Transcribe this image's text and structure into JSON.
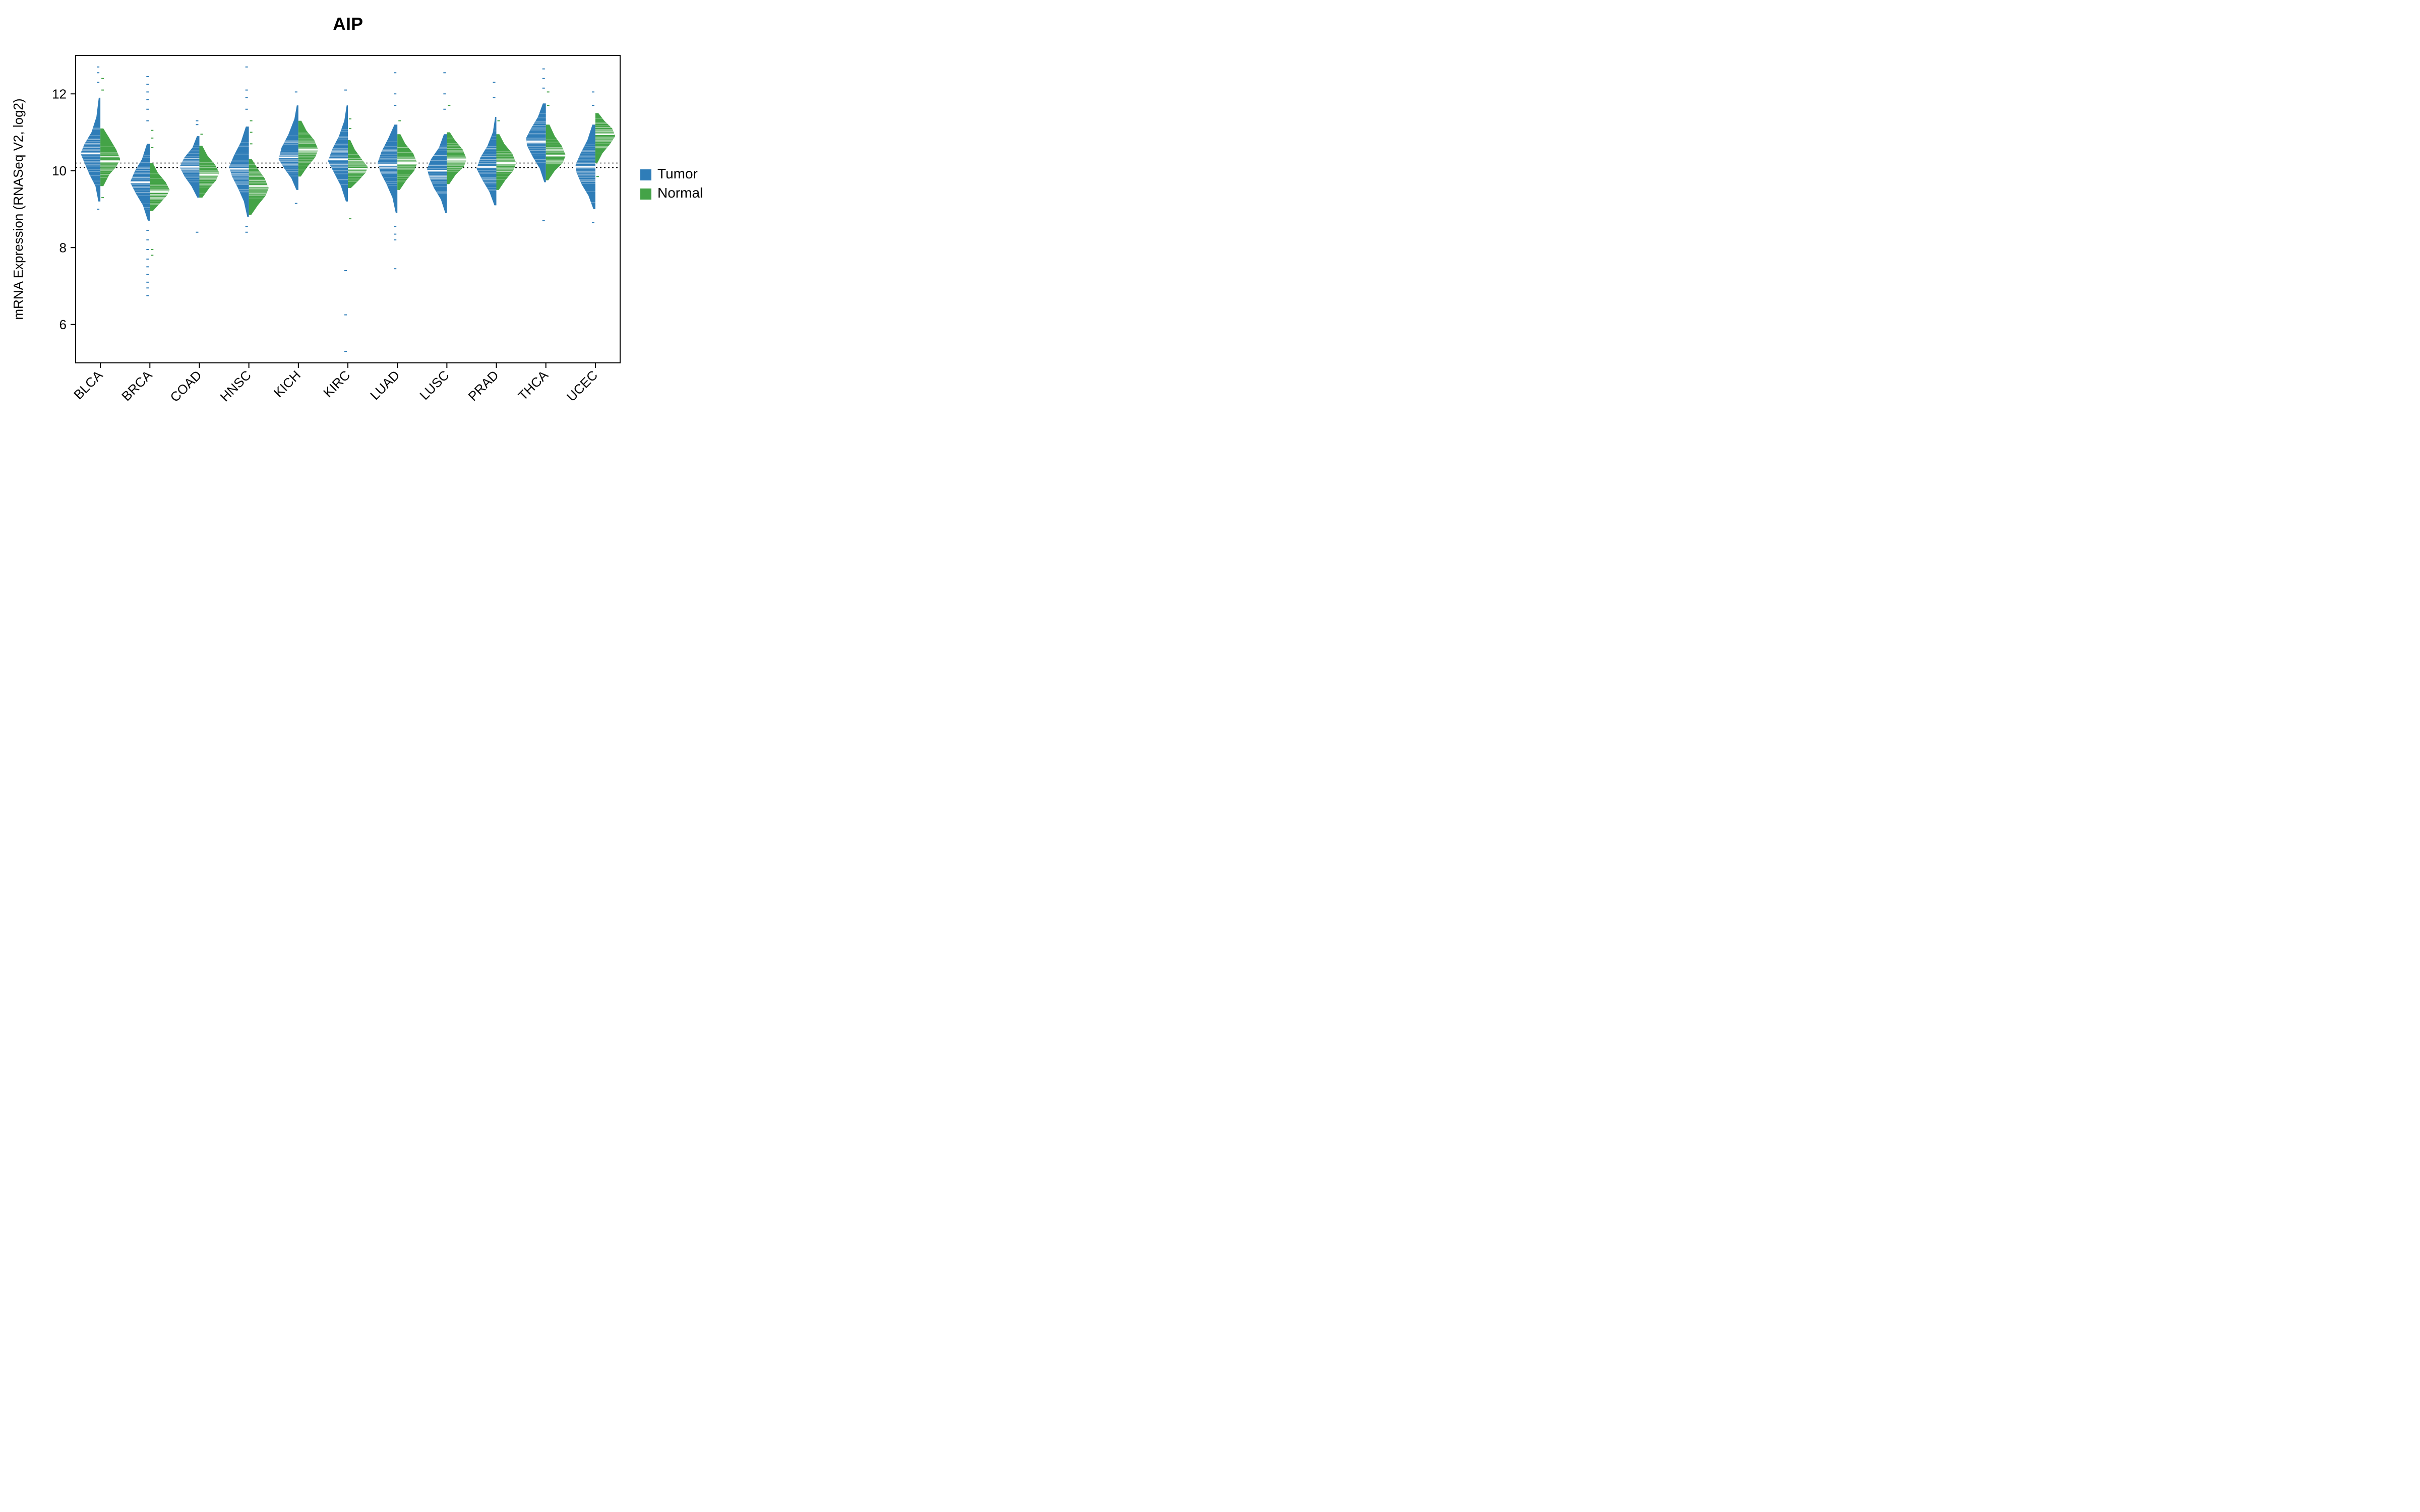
{
  "chart": {
    "type": "beanplot",
    "title": "AIP",
    "title_fontsize": 36,
    "title_fontweight": "bold",
    "ylabel": "mRNA Expression (RNASeq V2, log2)",
    "ylabel_fontsize": 26,
    "xlabel_fontsize": 26,
    "axis_tick_fontsize": 26,
    "background_color": "#ffffff",
    "axis_color": "#000000",
    "axis_linewidth": 2,
    "ylim": [
      5,
      13
    ],
    "yticks": [
      6,
      8,
      10,
      12
    ],
    "reference_lines": {
      "values": [
        10.08,
        10.2
      ],
      "color": "#000000",
      "dash": "3,5",
      "linewidth": 1.5
    },
    "legend": {
      "position": "right",
      "items": [
        {
          "label": "Tumor",
          "color": "#2f7db8"
        },
        {
          "label": "Normal",
          "color": "#44a347"
        }
      ],
      "swatch_size": 22,
      "fontsize": 28
    },
    "series_colors": {
      "tumor": "#2f7db8",
      "normal": "#44a347"
    },
    "median_line_color": "#ffffff",
    "median_line_width": 3,
    "obs_line_color_opacity": 0.85,
    "xlabel_rotation": -45,
    "categories": [
      "BLCA",
      "BRCA",
      "COAD",
      "HNSC",
      "KICH",
      "KIRC",
      "LUAD",
      "LUSC",
      "PRAD",
      "THCA",
      "UCEC"
    ],
    "groups": {
      "BLCA": {
        "tumor": {
          "median": 10.45,
          "dist": [
            [
              9.2,
              0.1
            ],
            [
              9.6,
              0.25
            ],
            [
              9.9,
              0.55
            ],
            [
              10.2,
              0.8
            ],
            [
              10.45,
              1.0
            ],
            [
              10.7,
              0.8
            ],
            [
              11.0,
              0.45
            ],
            [
              11.4,
              0.2
            ],
            [
              11.9,
              0.08
            ]
          ],
          "outliers": [
            12.3,
            12.55,
            12.7,
            9.0
          ]
        },
        "normal": {
          "median": 10.25,
          "dist": [
            [
              9.6,
              0.15
            ],
            [
              9.9,
              0.45
            ],
            [
              10.1,
              0.8
            ],
            [
              10.3,
              1.0
            ],
            [
              10.55,
              0.8
            ],
            [
              10.85,
              0.45
            ],
            [
              11.1,
              0.15
            ]
          ],
          "outliers": [
            12.1,
            12.4,
            9.3
          ]
        }
      },
      "BRCA": {
        "tumor": {
          "median": 9.7,
          "dist": [
            [
              8.7,
              0.1
            ],
            [
              9.1,
              0.35
            ],
            [
              9.4,
              0.7
            ],
            [
              9.7,
              1.0
            ],
            [
              10.0,
              0.75
            ],
            [
              10.3,
              0.4
            ],
            [
              10.7,
              0.15
            ]
          ],
          "outliers": [
            6.75,
            6.95,
            7.1,
            7.3,
            7.5,
            7.7,
            7.95,
            8.2,
            8.45,
            11.3,
            11.6,
            11.85,
            12.05,
            12.25,
            12.45
          ]
        },
        "normal": {
          "median": 9.45,
          "dist": [
            [
              8.95,
              0.15
            ],
            [
              9.15,
              0.5
            ],
            [
              9.35,
              0.85
            ],
            [
              9.5,
              1.0
            ],
            [
              9.7,
              0.8
            ],
            [
              9.95,
              0.4
            ],
            [
              10.2,
              0.15
            ]
          ],
          "outliers": [
            7.8,
            7.95,
            10.6,
            10.85,
            11.05
          ]
        }
      },
      "COAD": {
        "tumor": {
          "median": 10.1,
          "dist": [
            [
              9.3,
              0.1
            ],
            [
              9.6,
              0.4
            ],
            [
              9.85,
              0.75
            ],
            [
              10.1,
              1.0
            ],
            [
              10.35,
              0.75
            ],
            [
              10.6,
              0.35
            ],
            [
              10.9,
              0.12
            ]
          ],
          "outliers": [
            8.4,
            11.2,
            11.3
          ]
        },
        "normal": {
          "median": 9.9,
          "dist": [
            [
              9.3,
              0.15
            ],
            [
              9.55,
              0.5
            ],
            [
              9.75,
              0.85
            ],
            [
              9.95,
              1.0
            ],
            [
              10.15,
              0.8
            ],
            [
              10.4,
              0.4
            ],
            [
              10.65,
              0.15
            ]
          ],
          "outliers": [
            10.95
          ]
        }
      },
      "HNSC": {
        "tumor": {
          "median": 10.05,
          "dist": [
            [
              8.8,
              0.08
            ],
            [
              9.2,
              0.25
            ],
            [
              9.55,
              0.55
            ],
            [
              9.85,
              0.85
            ],
            [
              10.1,
              1.0
            ],
            [
              10.4,
              0.75
            ],
            [
              10.75,
              0.4
            ],
            [
              11.15,
              0.15
            ]
          ],
          "outliers": [
            8.4,
            8.55,
            11.6,
            11.9,
            12.1,
            12.7
          ]
        },
        "normal": {
          "median": 9.6,
          "dist": [
            [
              8.85,
              0.12
            ],
            [
              9.1,
              0.45
            ],
            [
              9.35,
              0.85
            ],
            [
              9.55,
              1.0
            ],
            [
              9.8,
              0.8
            ],
            [
              10.05,
              0.45
            ],
            [
              10.3,
              0.15
            ]
          ],
          "outliers": [
            10.7,
            11.0,
            11.3
          ]
        }
      },
      "KICH": {
        "tumor": {
          "median": 10.35,
          "dist": [
            [
              9.5,
              0.1
            ],
            [
              9.8,
              0.35
            ],
            [
              10.05,
              0.7
            ],
            [
              10.3,
              1.0
            ],
            [
              10.6,
              0.85
            ],
            [
              10.95,
              0.5
            ],
            [
              11.35,
              0.2
            ],
            [
              11.7,
              0.08
            ]
          ],
          "outliers": [
            12.05,
            9.15
          ]
        },
        "normal": {
          "median": 10.55,
          "dist": [
            [
              9.85,
              0.12
            ],
            [
              10.1,
              0.45
            ],
            [
              10.35,
              0.85
            ],
            [
              10.55,
              1.0
            ],
            [
              10.8,
              0.8
            ],
            [
              11.05,
              0.4
            ],
            [
              11.3,
              0.15
            ]
          ],
          "outliers": []
        }
      },
      "KIRC": {
        "tumor": {
          "median": 10.3,
          "dist": [
            [
              9.2,
              0.1
            ],
            [
              9.6,
              0.35
            ],
            [
              9.95,
              0.7
            ],
            [
              10.25,
              1.0
            ],
            [
              10.55,
              0.8
            ],
            [
              10.9,
              0.45
            ],
            [
              11.3,
              0.18
            ],
            [
              11.7,
              0.06
            ]
          ],
          "outliers": [
            5.3,
            6.25,
            7.4,
            12.1
          ]
        },
        "normal": {
          "median": 10.05,
          "dist": [
            [
              9.55,
              0.15
            ],
            [
              9.75,
              0.55
            ],
            [
              9.95,
              0.9
            ],
            [
              10.1,
              1.0
            ],
            [
              10.3,
              0.7
            ],
            [
              10.55,
              0.35
            ],
            [
              10.8,
              0.12
            ]
          ],
          "outliers": [
            8.75,
            11.1,
            11.35
          ]
        }
      },
      "LUAD": {
        "tumor": {
          "median": 10.15,
          "dist": [
            [
              8.9,
              0.08
            ],
            [
              9.3,
              0.25
            ],
            [
              9.65,
              0.55
            ],
            [
              9.95,
              0.85
            ],
            [
              10.2,
              1.0
            ],
            [
              10.5,
              0.8
            ],
            [
              10.85,
              0.45
            ],
            [
              11.2,
              0.15
            ]
          ],
          "outliers": [
            7.45,
            8.2,
            8.35,
            8.55,
            11.7,
            12.0,
            12.55
          ]
        },
        "normal": {
          "median": 10.2,
          "dist": [
            [
              9.5,
              0.12
            ],
            [
              9.75,
              0.45
            ],
            [
              10.0,
              0.85
            ],
            [
              10.2,
              1.0
            ],
            [
              10.45,
              0.8
            ],
            [
              10.7,
              0.4
            ],
            [
              10.95,
              0.15
            ]
          ],
          "outliers": [
            11.3
          ]
        }
      },
      "LUSC": {
        "tumor": {
          "median": 10.0,
          "dist": [
            [
              8.9,
              0.08
            ],
            [
              9.25,
              0.3
            ],
            [
              9.55,
              0.65
            ],
            [
              9.85,
              0.9
            ],
            [
              10.05,
              1.0
            ],
            [
              10.3,
              0.8
            ],
            [
              10.6,
              0.4
            ],
            [
              10.95,
              0.15
            ]
          ],
          "outliers": [
            11.6,
            12.0,
            12.55
          ]
        },
        "normal": {
          "median": 10.3,
          "dist": [
            [
              9.65,
              0.12
            ],
            [
              9.9,
              0.45
            ],
            [
              10.1,
              0.85
            ],
            [
              10.3,
              1.0
            ],
            [
              10.55,
              0.8
            ],
            [
              10.8,
              0.4
            ],
            [
              11.0,
              0.15
            ]
          ],
          "outliers": [
            11.7
          ]
        }
      },
      "PRAD": {
        "tumor": {
          "median": 10.1,
          "dist": [
            [
              9.1,
              0.1
            ],
            [
              9.45,
              0.35
            ],
            [
              9.75,
              0.7
            ],
            [
              10.05,
              1.0
            ],
            [
              10.35,
              0.8
            ],
            [
              10.65,
              0.45
            ],
            [
              11.0,
              0.18
            ],
            [
              11.4,
              0.06
            ]
          ],
          "outliers": [
            11.9,
            12.3
          ]
        },
        "normal": {
          "median": 10.2,
          "dist": [
            [
              9.5,
              0.12
            ],
            [
              9.75,
              0.45
            ],
            [
              10.0,
              0.85
            ],
            [
              10.2,
              1.0
            ],
            [
              10.45,
              0.8
            ],
            [
              10.7,
              0.4
            ],
            [
              10.95,
              0.15
            ]
          ],
          "outliers": [
            11.3
          ]
        }
      },
      "THCA": {
        "tumor": {
          "median": 10.75,
          "dist": [
            [
              9.7,
              0.08
            ],
            [
              10.05,
              0.3
            ],
            [
              10.35,
              0.65
            ],
            [
              10.65,
              0.95
            ],
            [
              10.85,
              1.0
            ],
            [
              11.1,
              0.75
            ],
            [
              11.4,
              0.4
            ],
            [
              11.75,
              0.15
            ]
          ],
          "outliers": [
            8.7,
            12.15,
            12.4,
            12.65
          ]
        },
        "normal": {
          "median": 10.4,
          "dist": [
            [
              9.75,
              0.12
            ],
            [
              10.0,
              0.45
            ],
            [
              10.2,
              0.85
            ],
            [
              10.4,
              1.0
            ],
            [
              10.65,
              0.8
            ],
            [
              10.9,
              0.45
            ],
            [
              11.2,
              0.18
            ]
          ],
          "outliers": [
            11.7,
            12.05
          ]
        }
      },
      "UCEC": {
        "tumor": {
          "median": 10.1,
          "dist": [
            [
              9.0,
              0.1
            ],
            [
              9.35,
              0.35
            ],
            [
              9.65,
              0.7
            ],
            [
              9.95,
              0.95
            ],
            [
              10.15,
              1.0
            ],
            [
              10.45,
              0.75
            ],
            [
              10.8,
              0.4
            ],
            [
              11.2,
              0.15
            ]
          ],
          "outliers": [
            8.65,
            11.7,
            12.05
          ]
        },
        "normal": {
          "median": 10.95,
          "dist": [
            [
              10.2,
              0.1
            ],
            [
              10.45,
              0.35
            ],
            [
              10.7,
              0.75
            ],
            [
              10.9,
              1.0
            ],
            [
              11.1,
              0.85
            ],
            [
              11.3,
              0.45
            ],
            [
              11.5,
              0.15
            ]
          ],
          "outliers": [
            9.85
          ]
        }
      }
    }
  }
}
